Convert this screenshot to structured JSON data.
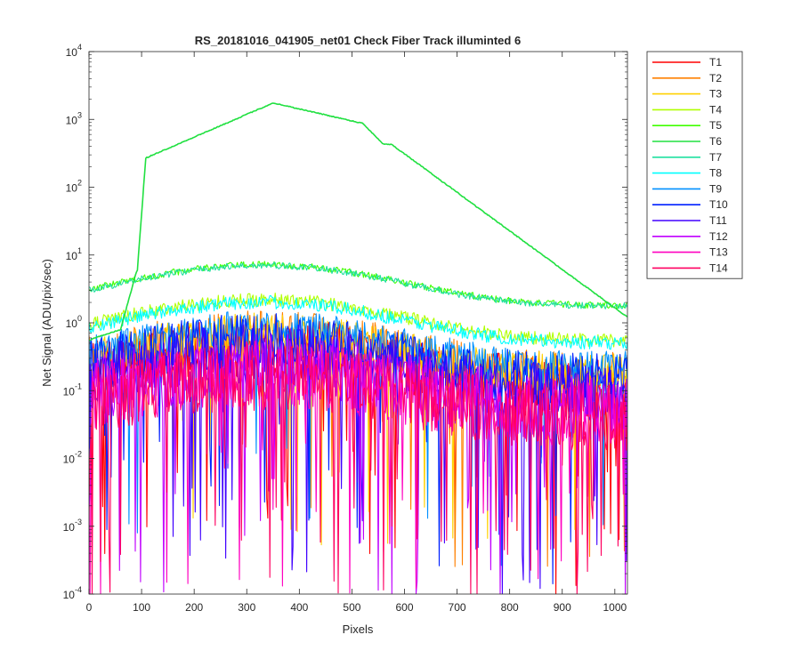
{
  "chart_data": {
    "type": "line",
    "title": "RS_20181016_041905_net01   Check Fiber     Track illuminted 6",
    "xlabel": "Pixels",
    "ylabel": "Net Signal (ADU/pix/sec)",
    "xlim": [
      0,
      1024
    ],
    "ylim": [
      0.0001,
      10000
    ],
    "yscale": "log",
    "x_ticks": [
      0,
      100,
      200,
      300,
      400,
      500,
      600,
      700,
      800,
      900,
      1000
    ],
    "y_tick_exponents": [
      -4,
      -3,
      -2,
      -1,
      0,
      1,
      2,
      3,
      4
    ],
    "y_tick_base": "10",
    "grid": false,
    "legend_position": "outside-right",
    "series": [
      {
        "name": "T1",
        "color": "#ff0000",
        "level": 0.42,
        "noise": 0.45,
        "dip_prob": 0.05
      },
      {
        "name": "T2",
        "color": "#ff8000",
        "level": 0.6,
        "noise": 0.4,
        "dip_prob": 0.04
      },
      {
        "name": "T3",
        "color": "#ffd000",
        "level": 0.7,
        "noise": 0.3,
        "dip_prob": 0.03
      },
      {
        "name": "T4",
        "color": "#b0ff00",
        "level": 2.2,
        "noise": 0.1,
        "dip_prob": 0.0
      },
      {
        "name": "T5",
        "color": "#40ff00",
        "level": 7.2,
        "noise": 0.05,
        "dip_prob": 0.0
      },
      {
        "name": "T6",
        "color": "#20e040",
        "level": 1750,
        "noise": 0.01,
        "dip_prob": 0.0
      },
      {
        "name": "T7",
        "color": "#20e0a0",
        "level": 7.0,
        "noise": 0.05,
        "dip_prob": 0.0
      },
      {
        "name": "T8",
        "color": "#00ffff",
        "level": 2.0,
        "noise": 0.1,
        "dip_prob": 0.0
      },
      {
        "name": "T9",
        "color": "#0090ff",
        "level": 0.85,
        "noise": 0.25,
        "dip_prob": 0.03
      },
      {
        "name": "T10",
        "color": "#0020ff",
        "level": 0.55,
        "noise": 0.4,
        "dip_prob": 0.05
      },
      {
        "name": "T11",
        "color": "#4000ff",
        "level": 0.35,
        "noise": 0.45,
        "dip_prob": 0.06
      },
      {
        "name": "T12",
        "color": "#c000ff",
        "level": 0.22,
        "noise": 0.5,
        "dip_prob": 0.07
      },
      {
        "name": "T13",
        "color": "#ff00c0",
        "level": 0.18,
        "noise": 0.5,
        "dip_prob": 0.07
      },
      {
        "name": "T14",
        "color": "#ff0060",
        "level": 0.16,
        "noise": 0.5,
        "dip_prob": 0.07
      }
    ]
  }
}
